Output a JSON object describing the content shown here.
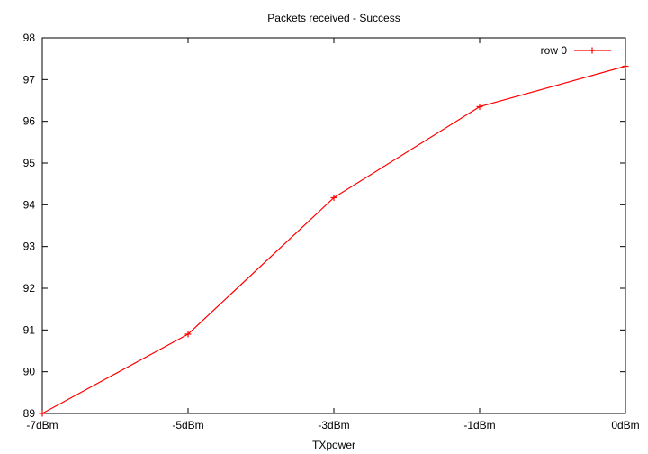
{
  "chart_data": {
    "type": "line",
    "title": "Packets received - Success",
    "xlabel": "TXpower",
    "ylabel": "",
    "categories": [
      "-7dBm",
      "-5dBm",
      "-3dBm",
      "-1dBm",
      "0dBm"
    ],
    "series": [
      {
        "name": "row 0",
        "color": "#ff0000",
        "marker": "plus",
        "values": [
          89.0,
          90.9,
          94.17,
          96.35,
          97.32
        ]
      }
    ],
    "ylim": [
      89,
      98
    ],
    "yticks": [
      "89",
      "90",
      "91",
      "92",
      "93",
      "94",
      "95",
      "96",
      "97",
      "98"
    ],
    "grid": false,
    "legend": "top-right"
  }
}
